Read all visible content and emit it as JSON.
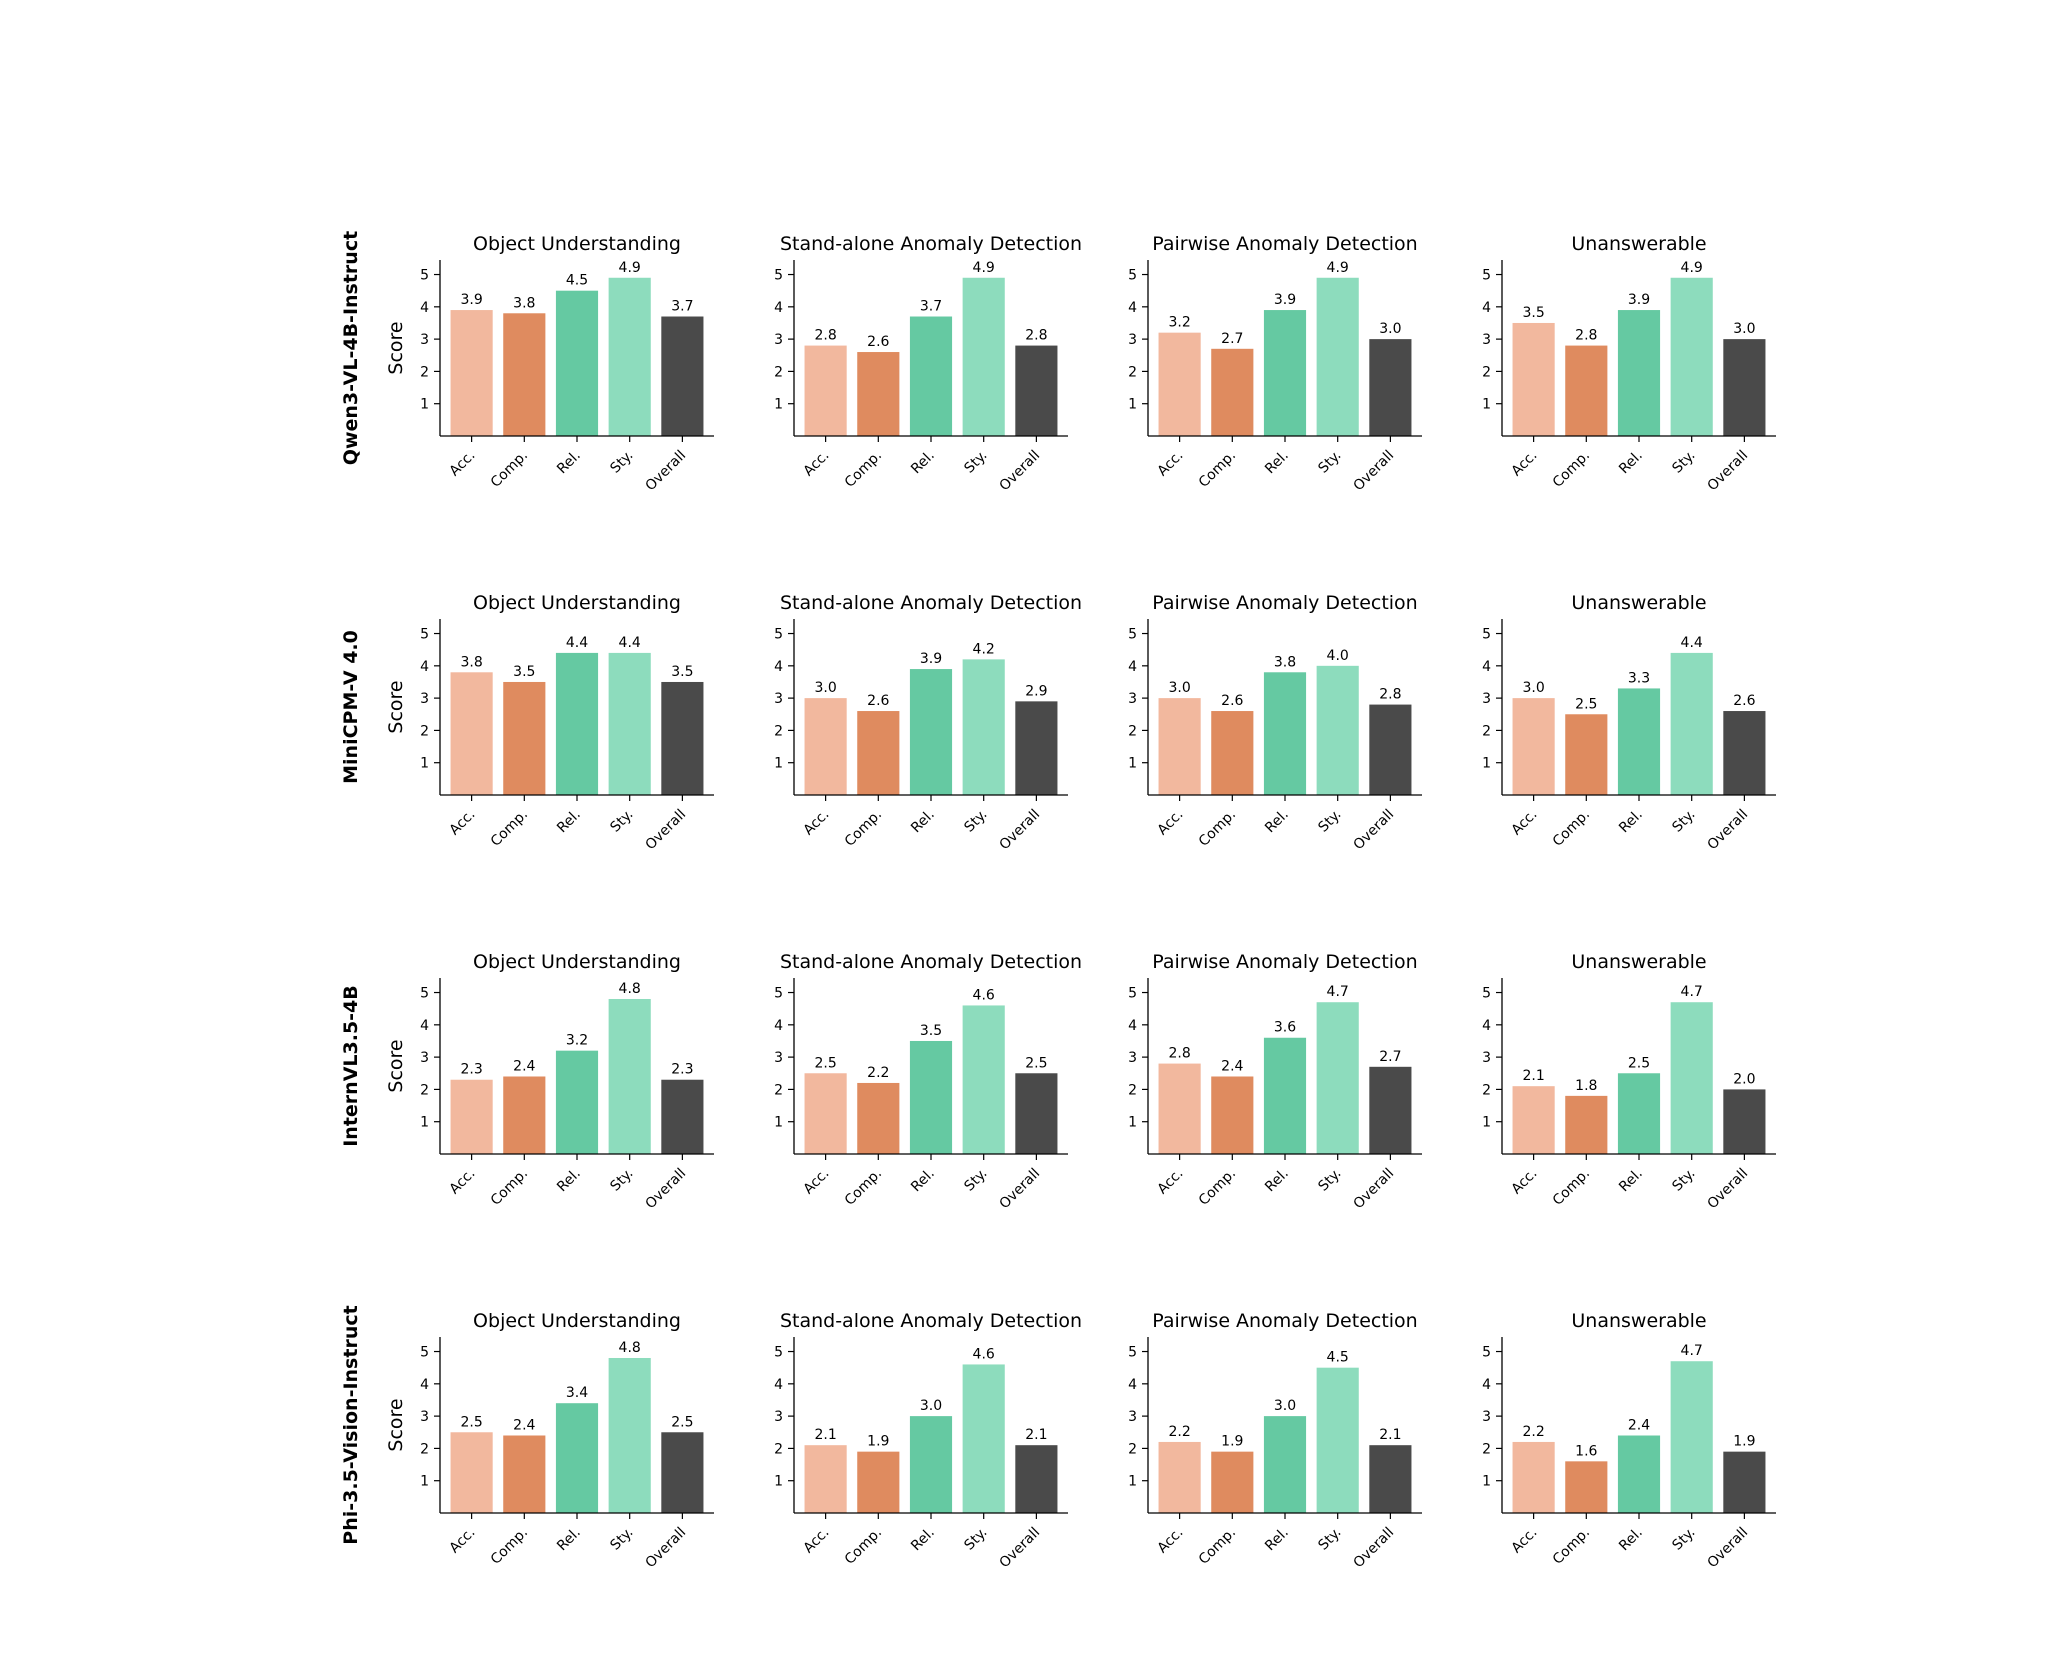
{
  "figure": {
    "colors": {
      "Acc.": "#f2b89e",
      "Comp.": "#df8b5f",
      "Rel.": "#65c9a2",
      "Sty.": "#8ddcbd",
      "Overall": "#4a4a4a"
    },
    "ylabel": "Score",
    "yticks": [
      1,
      2,
      3,
      4,
      5
    ],
    "ylim": [
      0,
      5.45
    ],
    "categories": [
      "Acc.",
      "Comp.",
      "Rel.",
      "Sty.",
      "Overall"
    ],
    "panel_titles": [
      "Object Understanding",
      "Stand-alone Anomaly Detection",
      "Pairwise Anomaly Detection",
      "Unanswerable"
    ],
    "row_labels": [
      "Qwen3-VL-4B-Instruct",
      "MiniCPM-V 4.0",
      "InternVL3.5-4B",
      "Phi-3.5-Vision-Instruct"
    ]
  },
  "chart_data": [
    {
      "type": "bar",
      "model": "Qwen3-VL-4B-Instruct",
      "title": "Object Understanding",
      "categories": [
        "Acc.",
        "Comp.",
        "Rel.",
        "Sty.",
        "Overall"
      ],
      "values": [
        3.9,
        3.8,
        4.5,
        4.9,
        3.7
      ],
      "ylabel": "Score",
      "ylim": [
        0,
        5.45
      ]
    },
    {
      "type": "bar",
      "model": "Qwen3-VL-4B-Instruct",
      "title": "Stand-alone Anomaly Detection",
      "categories": [
        "Acc.",
        "Comp.",
        "Rel.",
        "Sty.",
        "Overall"
      ],
      "values": [
        2.8,
        2.6,
        3.7,
        4.9,
        2.8
      ],
      "ylim": [
        0,
        5.45
      ]
    },
    {
      "type": "bar",
      "model": "Qwen3-VL-4B-Instruct",
      "title": "Pairwise Anomaly Detection",
      "categories": [
        "Acc.",
        "Comp.",
        "Rel.",
        "Sty.",
        "Overall"
      ],
      "values": [
        3.2,
        2.7,
        3.9,
        4.9,
        3.0
      ],
      "ylim": [
        0,
        5.45
      ]
    },
    {
      "type": "bar",
      "model": "Qwen3-VL-4B-Instruct",
      "title": "Unanswerable",
      "categories": [
        "Acc.",
        "Comp.",
        "Rel.",
        "Sty.",
        "Overall"
      ],
      "values": [
        3.5,
        2.8,
        3.9,
        4.9,
        3.0
      ],
      "ylim": [
        0,
        5.45
      ]
    },
    {
      "type": "bar",
      "model": "MiniCPM-V 4.0",
      "title": "Object Understanding",
      "categories": [
        "Acc.",
        "Comp.",
        "Rel.",
        "Sty.",
        "Overall"
      ],
      "values": [
        3.8,
        3.5,
        4.4,
        4.4,
        3.5
      ],
      "ylabel": "Score",
      "ylim": [
        0,
        5.45
      ]
    },
    {
      "type": "bar",
      "model": "MiniCPM-V 4.0",
      "title": "Stand-alone Anomaly Detection",
      "categories": [
        "Acc.",
        "Comp.",
        "Rel.",
        "Sty.",
        "Overall"
      ],
      "values": [
        3.0,
        2.6,
        3.9,
        4.2,
        2.9
      ],
      "ylim": [
        0,
        5.45
      ]
    },
    {
      "type": "bar",
      "model": "MiniCPM-V 4.0",
      "title": "Pairwise Anomaly Detection",
      "categories": [
        "Acc.",
        "Comp.",
        "Rel.",
        "Sty.",
        "Overall"
      ],
      "values": [
        3.0,
        2.6,
        3.8,
        4.0,
        2.8
      ],
      "ylim": [
        0,
        5.45
      ]
    },
    {
      "type": "bar",
      "model": "MiniCPM-V 4.0",
      "title": "Unanswerable",
      "categories": [
        "Acc.",
        "Comp.",
        "Rel.",
        "Sty.",
        "Overall"
      ],
      "values": [
        3.0,
        2.5,
        3.3,
        4.4,
        2.6
      ],
      "ylim": [
        0,
        5.45
      ]
    },
    {
      "type": "bar",
      "model": "InternVL3.5-4B",
      "title": "Object Understanding",
      "categories": [
        "Acc.",
        "Comp.",
        "Rel.",
        "Sty.",
        "Overall"
      ],
      "values": [
        2.3,
        2.4,
        3.2,
        4.8,
        2.3
      ],
      "ylabel": "Score",
      "ylim": [
        0,
        5.45
      ]
    },
    {
      "type": "bar",
      "model": "InternVL3.5-4B",
      "title": "Stand-alone Anomaly Detection",
      "categories": [
        "Acc.",
        "Comp.",
        "Rel.",
        "Sty.",
        "Overall"
      ],
      "values": [
        2.5,
        2.2,
        3.5,
        4.6,
        2.5
      ],
      "ylim": [
        0,
        5.45
      ]
    },
    {
      "type": "bar",
      "model": "InternVL3.5-4B",
      "title": "Pairwise Anomaly Detection",
      "categories": [
        "Acc.",
        "Comp.",
        "Rel.",
        "Sty.",
        "Overall"
      ],
      "values": [
        2.8,
        2.4,
        3.6,
        4.7,
        2.7
      ],
      "ylim": [
        0,
        5.45
      ]
    },
    {
      "type": "bar",
      "model": "InternVL3.5-4B",
      "title": "Unanswerable",
      "categories": [
        "Acc.",
        "Comp.",
        "Rel.",
        "Sty.",
        "Overall"
      ],
      "values": [
        2.1,
        1.8,
        2.5,
        4.7,
        2.0
      ],
      "ylim": [
        0,
        5.45
      ]
    },
    {
      "type": "bar",
      "model": "Phi-3.5-Vision-Instruct",
      "title": "Object Understanding",
      "categories": [
        "Acc.",
        "Comp.",
        "Rel.",
        "Sty.",
        "Overall"
      ],
      "values": [
        2.5,
        2.4,
        3.4,
        4.8,
        2.5
      ],
      "ylabel": "Score",
      "ylim": [
        0,
        5.45
      ]
    },
    {
      "type": "bar",
      "model": "Phi-3.5-Vision-Instruct",
      "title": "Stand-alone Anomaly Detection",
      "categories": [
        "Acc.",
        "Comp.",
        "Rel.",
        "Sty.",
        "Overall"
      ],
      "values": [
        2.1,
        1.9,
        3.0,
        4.6,
        2.1
      ],
      "ylim": [
        0,
        5.45
      ]
    },
    {
      "type": "bar",
      "model": "Phi-3.5-Vision-Instruct",
      "title": "Pairwise Anomaly Detection",
      "categories": [
        "Acc.",
        "Comp.",
        "Rel.",
        "Sty.",
        "Overall"
      ],
      "values": [
        2.2,
        1.9,
        3.0,
        4.5,
        2.1
      ],
      "ylim": [
        0,
        5.45
      ]
    },
    {
      "type": "bar",
      "model": "Phi-3.5-Vision-Instruct",
      "title": "Unanswerable",
      "categories": [
        "Acc.",
        "Comp.",
        "Rel.",
        "Sty.",
        "Overall"
      ],
      "values": [
        2.2,
        1.6,
        2.4,
        4.7,
        1.9
      ],
      "ylim": [
        0,
        5.45
      ]
    }
  ]
}
